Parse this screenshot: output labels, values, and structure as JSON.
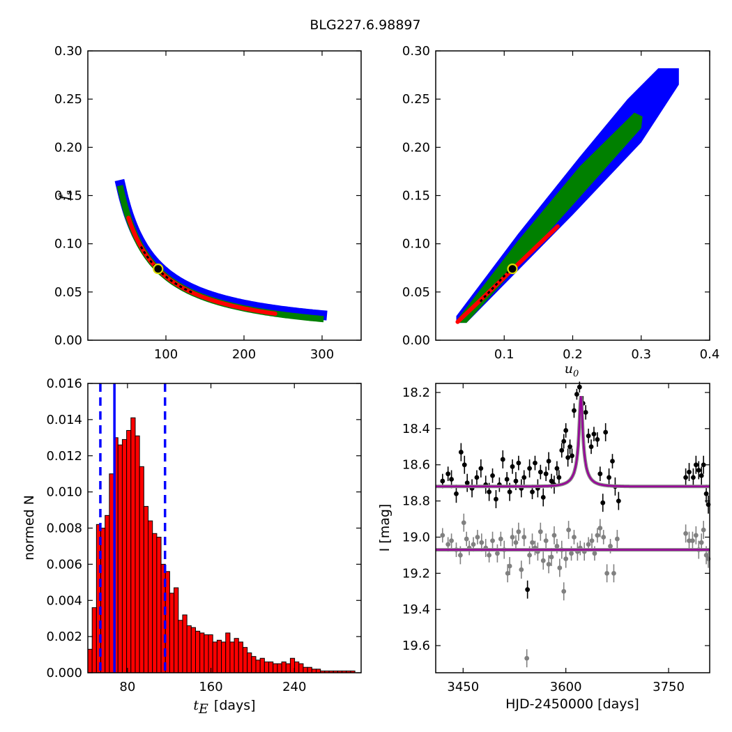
{
  "figure": {
    "title": "BLG227.6.98897"
  },
  "chart_data": [
    {
      "type": "heatmap",
      "panel": "fs-vs-tE",
      "xlabel": "",
      "ylabel_main": "f",
      "ylabel_sub": "s",
      "xlim": [
        0,
        350
      ],
      "ylim": [
        0.0,
        0.3
      ],
      "xticks": [
        "100",
        "200",
        "300"
      ],
      "yticks": [
        "0.00",
        "0.05",
        "0.10",
        "0.15",
        "0.20",
        "0.25",
        "0.30"
      ],
      "colors": {
        "outer": "#0000ff",
        "mid": "#008000",
        "inner": "#ff0000",
        "core": "#000000"
      },
      "curve": {
        "model": "fs = 6.6 / tE",
        "x_range": [
          42,
          300
        ]
      },
      "best_fit": {
        "x": 90,
        "y": 0.074
      }
    },
    {
      "type": "heatmap",
      "panel": "fs-vs-u0",
      "xlabel_main": "u",
      "xlabel_sub": "0",
      "ylabel": "",
      "xlim": [
        0.0,
        0.4
      ],
      "ylim": [
        0.0,
        0.3
      ],
      "xticks": [
        "0.1",
        "0.2",
        "0.3",
        "0.4"
      ],
      "yticks": [
        "0.00",
        "0.05",
        "0.10",
        "0.15",
        "0.20",
        "0.25",
        "0.30"
      ],
      "colors": {
        "outer": "#0000ff",
        "mid": "#008000",
        "inner": "#ff0000",
        "core": "#000000"
      },
      "best_fit": {
        "x": 0.112,
        "y": 0.074
      }
    },
    {
      "type": "bar",
      "panel": "tE-histogram",
      "xlabel_main": "t",
      "xlabel_sub": "E",
      "xlabel_unit": "[days]",
      "ylabel": "normed N",
      "xlim": [
        42,
        304
      ],
      "ylim": [
        0.0,
        0.016
      ],
      "xticks": [
        "80",
        "160",
        "240"
      ],
      "yticks": [
        "0.000",
        "0.002",
        "0.004",
        "0.006",
        "0.008",
        "0.010",
        "0.012",
        "0.014",
        "0.016"
      ],
      "bar_color": "#ff0000",
      "bin_start": 42,
      "bin_width": 4.13,
      "values": [
        0.0013,
        0.0036,
        0.0082,
        0.008,
        0.0087,
        0.011,
        0.013,
        0.0126,
        0.0129,
        0.0134,
        0.0141,
        0.0131,
        0.0114,
        0.0092,
        0.0084,
        0.0077,
        0.0075,
        0.006,
        0.0056,
        0.0044,
        0.0047,
        0.0029,
        0.0032,
        0.0026,
        0.0025,
        0.0023,
        0.0022,
        0.0021,
        0.0021,
        0.0017,
        0.0018,
        0.0017,
        0.0022,
        0.0017,
        0.0019,
        0.0017,
        0.0014,
        0.0011,
        0.0009,
        0.0007,
        0.0008,
        0.0006,
        0.0006,
        0.0005,
        0.0005,
        0.0006,
        0.0005,
        0.0008,
        0.0006,
        0.0005,
        0.0003,
        0.0003,
        0.0002,
        0.0002,
        0.0001,
        0.0001,
        0.0001,
        0.0001,
        0.0001,
        0.0001,
        0.0001,
        0.0001,
        0.0
      ],
      "vlines": [
        {
          "x": 54,
          "style": "dashed",
          "color": "#0000ff"
        },
        {
          "x": 67.5,
          "style": "solid",
          "color": "#0000ff"
        },
        {
          "x": 116,
          "style": "dashed",
          "color": "#0000ff"
        }
      ]
    },
    {
      "type": "scatter",
      "panel": "light-curve",
      "xlabel": "HJD-2450000 [days]",
      "ylabel": "I [mag]",
      "xlim": [
        3410,
        3810
      ],
      "ylim": [
        19.75,
        18.15
      ],
      "y_inverted": true,
      "xticks": [
        "3450",
        "3600",
        "3750"
      ],
      "yticks": [
        "18.2",
        "18.4",
        "18.6",
        "18.8",
        "19.0",
        "19.2",
        "19.4",
        "19.6"
      ],
      "model_color": "#990099",
      "model_peak": {
        "t0": 3622,
        "base_mag": 18.72,
        "peak_mag": 18.22,
        "tE": 21.2,
        "u0": 0.112
      },
      "secondary_model": {
        "base_mag": 19.07
      },
      "series": [
        {
          "color": "#000000",
          "points": [
            [
              3420,
              18.69,
              0.04
            ],
            [
              3428,
              18.65,
              0.04
            ],
            [
              3433,
              18.68,
              0.05
            ],
            [
              3440,
              18.76,
              0.05
            ],
            [
              3447,
              18.53,
              0.05
            ],
            [
              3452,
              18.6,
              0.05
            ],
            [
              3456,
              18.7,
              0.05
            ],
            [
              3463,
              18.73,
              0.05
            ],
            [
              3470,
              18.67,
              0.04
            ],
            [
              3476,
              18.62,
              0.05
            ],
            [
              3483,
              18.71,
              0.05
            ],
            [
              3488,
              18.75,
              0.05
            ],
            [
              3493,
              18.66,
              0.04
            ],
            [
              3498,
              18.79,
              0.05
            ],
            [
              3503,
              18.71,
              0.04
            ],
            [
              3508,
              18.57,
              0.05
            ],
            [
              3514,
              18.68,
              0.04
            ],
            [
              3518,
              18.75,
              0.05
            ],
            [
              3522,
              18.61,
              0.04
            ],
            [
              3527,
              18.69,
              0.05
            ],
            [
              3531,
              18.59,
              0.04
            ],
            [
              3535,
              18.73,
              0.05
            ],
            [
              3539,
              18.67,
              0.04
            ],
            [
              3544,
              19.29,
              0.05
            ],
            [
              3547,
              18.62,
              0.05
            ],
            [
              3551,
              18.75,
              0.04
            ],
            [
              3555,
              18.59,
              0.04
            ],
            [
              3559,
              18.73,
              0.05
            ],
            [
              3563,
              18.64,
              0.04
            ],
            [
              3567,
              18.78,
              0.05
            ],
            [
              3571,
              18.65,
              0.04
            ],
            [
              3575,
              18.58,
              0.05
            ],
            [
              3579,
              18.69,
              0.04
            ],
            [
              3583,
              18.71,
              0.05
            ],
            [
              3587,
              18.62,
              0.04
            ],
            [
              3590,
              18.67,
              0.04
            ],
            [
              3594,
              18.52,
              0.04
            ],
            [
              3597,
              18.47,
              0.04
            ],
            [
              3600,
              18.41,
              0.04
            ],
            [
              3603,
              18.56,
              0.05
            ],
            [
              3606,
              18.5,
              0.04
            ],
            [
              3609,
              18.55,
              0.04
            ],
            [
              3612,
              18.3,
              0.04
            ],
            [
              3616,
              18.21,
              0.03
            ],
            [
              3620,
              18.17,
              0.03
            ],
            [
              3625,
              18.26,
              0.04
            ],
            [
              3629,
              18.31,
              0.04
            ],
            [
              3633,
              18.44,
              0.04
            ],
            [
              3637,
              18.5,
              0.04
            ],
            [
              3641,
              18.43,
              0.04
            ],
            [
              3646,
              18.46,
              0.04
            ],
            [
              3650,
              18.65,
              0.04
            ],
            [
              3654,
              18.81,
              0.05
            ],
            [
              3658,
              18.42,
              0.05
            ],
            [
              3663,
              18.67,
              0.05
            ],
            [
              3668,
              18.58,
              0.04
            ],
            [
              3672,
              18.72,
              0.05
            ],
            [
              3677,
              18.8,
              0.05
            ],
            [
              3775,
              18.67,
              0.05
            ],
            [
              3780,
              18.64,
              0.05
            ],
            [
              3786,
              18.67,
              0.05
            ],
            [
              3790,
              18.6,
              0.05
            ],
            [
              3794,
              18.63,
              0.05
            ],
            [
              3798,
              18.66,
              0.05
            ],
            [
              3801,
              18.6,
              0.05
            ],
            [
              3805,
              18.76,
              0.05
            ],
            [
              3808,
              18.82,
              0.05
            ]
          ]
        },
        {
          "color": "#808080",
          "points": [
            [
              3420,
              18.99,
              0.04
            ],
            [
              3428,
              19.04,
              0.04
            ],
            [
              3433,
              19.02,
              0.04
            ],
            [
              3440,
              19.07,
              0.04
            ],
            [
              3446,
              19.1,
              0.05
            ],
            [
              3451,
              18.92,
              0.05
            ],
            [
              3455,
              19.01,
              0.04
            ],
            [
              3459,
              19.06,
              0.04
            ],
            [
              3465,
              19.04,
              0.04
            ],
            [
              3471,
              19.0,
              0.04
            ],
            [
              3477,
              19.03,
              0.05
            ],
            [
              3483,
              19.06,
              0.05
            ],
            [
              3488,
              19.1,
              0.04
            ],
            [
              3493,
              19.02,
              0.05
            ],
            [
              3500,
              19.09,
              0.05
            ],
            [
              3505,
              19.01,
              0.04
            ],
            [
              3510,
              19.07,
              0.05
            ],
            [
              3515,
              19.2,
              0.05
            ],
            [
              3518,
              19.16,
              0.05
            ],
            [
              3522,
              19.0,
              0.05
            ],
            [
              3527,
              19.03,
              0.04
            ],
            [
              3531,
              18.97,
              0.05
            ],
            [
              3535,
              19.18,
              0.05
            ],
            [
              3539,
              19.0,
              0.05
            ],
            [
              3543,
              19.67,
              0.05
            ],
            [
              3547,
              19.1,
              0.05
            ],
            [
              3551,
              19.03,
              0.05
            ],
            [
              3555,
              19.06,
              0.04
            ],
            [
              3559,
              19.08,
              0.05
            ],
            [
              3563,
              18.97,
              0.05
            ],
            [
              3567,
              19.13,
              0.05
            ],
            [
              3571,
              19.02,
              0.04
            ],
            [
              3575,
              19.15,
              0.05
            ],
            [
              3579,
              19.11,
              0.05
            ],
            [
              3583,
              18.99,
              0.05
            ],
            [
              3587,
              19.05,
              0.04
            ],
            [
              3591,
              19.17,
              0.05
            ],
            [
              3594,
              19.07,
              0.05
            ],
            [
              3597,
              19.3,
              0.05
            ],
            [
              3600,
              19.12,
              0.05
            ],
            [
              3604,
              18.96,
              0.05
            ],
            [
              3608,
              19.09,
              0.04
            ],
            [
              3612,
              19.0,
              0.04
            ],
            [
              3617,
              19.08,
              0.05
            ],
            [
              3621,
              19.06,
              0.04
            ],
            [
              3627,
              19.08,
              0.05
            ],
            [
              3633,
              19.04,
              0.04
            ],
            [
              3638,
              19.02,
              0.04
            ],
            [
              3642,
              19.09,
              0.04
            ],
            [
              3646,
              18.99,
              0.04
            ],
            [
              3650,
              18.95,
              0.05
            ],
            [
              3655,
              19.0,
              0.04
            ],
            [
              3660,
              19.2,
              0.05
            ],
            [
              3665,
              19.05,
              0.04
            ],
            [
              3670,
              19.2,
              0.05
            ],
            [
              3675,
              19.01,
              0.05
            ],
            [
              3775,
              18.98,
              0.05
            ],
            [
              3780,
              19.02,
              0.05
            ],
            [
              3785,
              19.02,
              0.05
            ],
            [
              3790,
              18.99,
              0.05
            ],
            [
              3794,
              19.07,
              0.05
            ],
            [
              3798,
              19.03,
              0.05
            ],
            [
              3801,
              18.96,
              0.05
            ],
            [
              3805,
              19.1,
              0.05
            ],
            [
              3808,
              19.12,
              0.05
            ]
          ]
        }
      ]
    }
  ]
}
